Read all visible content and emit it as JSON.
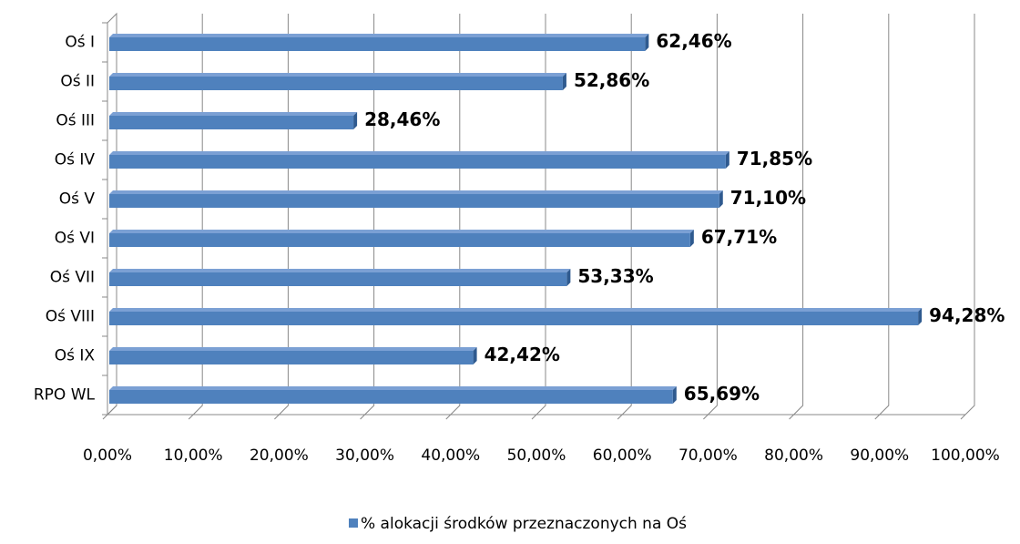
{
  "chart_data": {
    "type": "bar",
    "orientation": "horizontal",
    "categories": [
      "Oś I",
      "Oś II",
      "Oś III",
      "Oś IV",
      "Oś V",
      "Oś VI",
      "Oś VII",
      "Oś VIII",
      "Oś IX",
      "RPO WL"
    ],
    "series": [
      {
        "name": "% alokacji środków przeznaczonych na Oś",
        "color": "#4f81bd",
        "values": [
          62.46,
          52.86,
          28.46,
          71.85,
          71.1,
          67.71,
          53.33,
          94.28,
          42.42,
          65.69
        ],
        "value_labels": [
          "62,46%",
          "52,86%",
          "28,46%",
          "71,85%",
          "71,10%",
          "67,71%",
          "53,33%",
          "94,28%",
          "42,42%",
          "65,69%"
        ]
      }
    ],
    "xlim": [
      0,
      100
    ],
    "xticks": [
      {
        "value": 0,
        "label": "0,00%"
      },
      {
        "value": 10,
        "label": "10,00%"
      },
      {
        "value": 20,
        "label": "20,00%"
      },
      {
        "value": 30,
        "label": "30,00%"
      },
      {
        "value": 40,
        "label": "40,00%"
      },
      {
        "value": 50,
        "label": "50,00%"
      },
      {
        "value": 60,
        "label": "60,00%"
      },
      {
        "value": 70,
        "label": "70,00%"
      },
      {
        "value": 80,
        "label": "80,00%"
      },
      {
        "value": 90,
        "label": "90,00%"
      },
      {
        "value": 100,
        "label": "100,00%"
      }
    ],
    "grid": true,
    "legend": "bottom"
  }
}
